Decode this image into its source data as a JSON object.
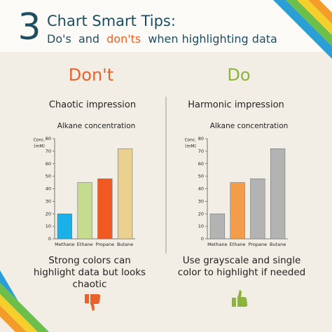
{
  "header": {
    "number": "3",
    "title": "Chart Smart Tips:",
    "subtitle_parts": [
      "Do's",
      "and",
      "don'ts",
      "when highlighting data"
    ]
  },
  "panels": [
    {
      "heading": "Don't",
      "subheading": "Chaotic impression",
      "caption_lines": [
        "Strong colors can",
        "highlight data but looks",
        "chaotic"
      ]
    },
    {
      "heading": "Do",
      "subheading": "Harmonic impression",
      "caption_lines": [
        "Use grayscale and single",
        "color to highlight if needed"
      ]
    }
  ],
  "chart_data": [
    {
      "type": "bar",
      "title": "Alkane concentration",
      "ylabel": [
        "Conc.",
        "(mM)"
      ],
      "categories": [
        "Methane",
        "Ethane",
        "Propane",
        "Butane"
      ],
      "values": [
        20,
        45,
        48,
        72
      ],
      "colors": [
        "#1ab0e8",
        "#c5dc8f",
        "#f05a22",
        "#ead18f"
      ],
      "ylim": [
        0,
        80
      ],
      "yticks": [
        0,
        10,
        20,
        30,
        40,
        50,
        60,
        70,
        80
      ]
    },
    {
      "type": "bar",
      "title": "Alkane concentration",
      "ylabel": [
        "Conc.",
        "(mM)"
      ],
      "categories": [
        "Methane",
        "Ethane",
        "Propane",
        "Butane"
      ],
      "values": [
        20,
        45,
        48,
        72
      ],
      "colors": [
        "#b3b3b3",
        "#f39c4a",
        "#b3b3b3",
        "#b3b3b3"
      ],
      "ylim": [
        0,
        80
      ],
      "yticks": [
        0,
        10,
        20,
        30,
        40,
        50,
        60,
        70,
        80
      ]
    }
  ]
}
